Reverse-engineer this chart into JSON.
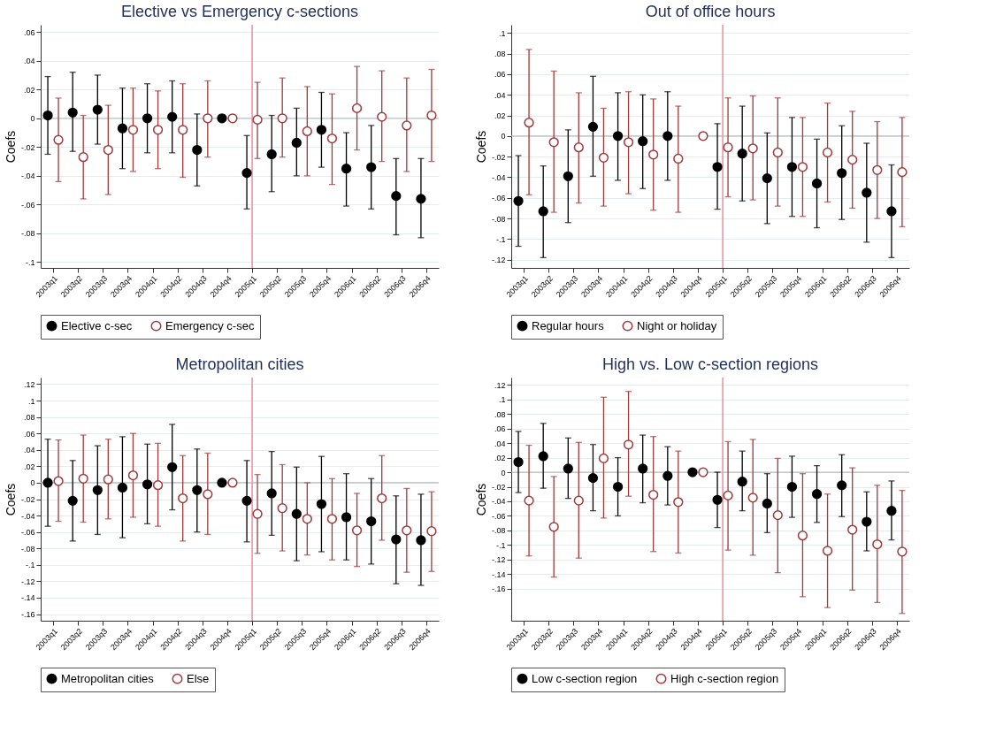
{
  "chart_data": [
    {
      "type": "scatter",
      "title": "Elective vs Emergency c-sections",
      "ylabel": "Coefs",
      "categories": [
        "2003q1",
        "2003q2",
        "2003q3",
        "2003q4",
        "2004q1",
        "2004q2",
        "2004q3",
        "2004q4",
        "2005q1",
        "2005q2",
        "2005q3",
        "2005q4",
        "2006q1",
        "2006q2",
        "2006q3",
        "2006q4"
      ],
      "ylim": [
        -0.104,
        0.065
      ],
      "yticks": [
        {
          "value": -0.1,
          "label": "-.1"
        },
        {
          "value": -0.08,
          "label": "-.08"
        },
        {
          "value": -0.06,
          "label": "-.06"
        },
        {
          "value": -0.04,
          "label": "-.04"
        },
        {
          "value": -0.02,
          "label": "-.02"
        },
        0,
        {
          "value": 0.02,
          "label": ".02"
        },
        {
          "value": 0.04,
          "label": ".04"
        },
        {
          "value": 0.06,
          "label": ".06"
        }
      ],
      "grid": "y",
      "legend": "bottom",
      "marker": "circle",
      "ref_lines": [
        {
          "axis": "x",
          "value": "2005q1",
          "color": "#e8708a"
        },
        {
          "axis": "y",
          "value": 0,
          "color": "#bbbbbb"
        }
      ],
      "series": [
        {
          "name": "Elective c-sec",
          "color": "#000000",
          "values": [
            0.002,
            0.004,
            0.006,
            -0.007,
            0,
            0.001,
            -0.022,
            0,
            -0.038,
            -0.025,
            -0.017,
            -0.008,
            -0.035,
            -0.034,
            -0.054,
            -0.056
          ],
          "errors": [
            [
              -0.025,
              0.029
            ],
            [
              -0.023,
              0.032
            ],
            [
              -0.018,
              0.03
            ],
            [
              -0.035,
              0.021
            ],
            [
              -0.024,
              0.024
            ],
            [
              -0.024,
              0.026
            ],
            [
              -0.047,
              0.003
            ],
            null,
            [
              -0.063,
              -0.012
            ],
            [
              -0.051,
              0.002
            ],
            [
              -0.04,
              0.007
            ],
            [
              -0.034,
              0.018
            ],
            [
              -0.061,
              -0.01
            ],
            [
              -0.063,
              -0.005
            ],
            [
              -0.081,
              -0.028
            ],
            [
              -0.083,
              -0.028
            ]
          ]
        },
        {
          "name": "Emergency c-sec",
          "color": "#9e3a3a",
          "values": [
            -0.015,
            -0.027,
            -0.022,
            -0.008,
            -0.008,
            -0.008,
            0,
            0,
            -0.001,
            0,
            -0.009,
            -0.014,
            0.007,
            0.001,
            -0.005,
            0.002
          ],
          "errors": [
            [
              -0.044,
              0.014
            ],
            [
              -0.056,
              0.002
            ],
            [
              -0.053,
              0.009
            ],
            [
              -0.037,
              0.021
            ],
            [
              -0.035,
              0.019
            ],
            [
              -0.041,
              0.024
            ],
            [
              -0.027,
              0.026
            ],
            null,
            [
              -0.028,
              0.025
            ],
            [
              -0.027,
              0.028
            ],
            [
              -0.04,
              0.022
            ],
            [
              -0.046,
              0.017
            ],
            [
              -0.022,
              0.036
            ],
            [
              -0.03,
              0.033
            ],
            [
              -0.037,
              0.028
            ],
            [
              -0.03,
              0.034
            ]
          ]
        }
      ]
    },
    {
      "type": "scatter",
      "title": "Out of office hours",
      "ylabel": "Coefs",
      "categories": [
        "2003q1",
        "2003q2",
        "2003q3",
        "2003q4",
        "2004q1",
        "2004q2",
        "2004q3",
        "2004q4",
        "2005q1",
        "2005q2",
        "2005q3",
        "2005q4",
        "2006q1",
        "2006q2",
        "2006q3",
        "2006q4"
      ],
      "ylim": [
        -0.128,
        0.108
      ],
      "yticks": [
        {
          "value": -0.12,
          "label": "-.12"
        },
        {
          "value": -0.1,
          "label": "-.1"
        },
        {
          "value": -0.08,
          "label": "-.08"
        },
        {
          "value": -0.06,
          "label": "-.06"
        },
        {
          "value": -0.04,
          "label": "-.04"
        },
        {
          "value": -0.02,
          "label": "-.02"
        },
        0,
        {
          "value": 0.02,
          "label": ".02"
        },
        {
          "value": 0.04,
          "label": ".04"
        },
        {
          "value": 0.06,
          "label": ".06"
        },
        {
          "value": 0.08,
          "label": ".08"
        },
        {
          "value": 0.1,
          "label": ".1"
        }
      ],
      "grid": "y",
      "legend": "bottom",
      "marker": "circle",
      "ref_lines": [
        {
          "axis": "x",
          "value": "2005q1",
          "color": "#e8708a"
        },
        {
          "axis": "y",
          "value": 0,
          "color": "#bbbbbb"
        }
      ],
      "series": [
        {
          "name": "Regular hours",
          "color": "#000000",
          "values": [
            -0.063,
            -0.073,
            -0.039,
            0.009,
            0,
            -0.005,
            0,
            null,
            -0.03,
            -0.017,
            -0.041,
            -0.03,
            -0.046,
            -0.036,
            -0.055,
            -0.073
          ],
          "errors": [
            [
              -0.107,
              -0.019
            ],
            [
              -0.118,
              -0.029
            ],
            [
              -0.084,
              0.006
            ],
            [
              -0.039,
              0.058
            ],
            [
              -0.043,
              0.042
            ],
            [
              -0.051,
              0.04
            ],
            [
              -0.043,
              0.043
            ],
            null,
            [
              -0.071,
              0.012
            ],
            [
              -0.063,
              0.029
            ],
            [
              -0.085,
              0.003
            ],
            [
              -0.078,
              0.018
            ],
            [
              -0.089,
              -0.003
            ],
            [
              -0.081,
              0.01
            ],
            [
              -0.103,
              -0.007
            ],
            [
              -0.118,
              -0.028
            ]
          ]
        },
        {
          "name": "Night or holiday",
          "color": "#9e3a3a",
          "values": [
            0.013,
            -0.006,
            -0.011,
            -0.021,
            -0.006,
            -0.018,
            -0.022,
            0,
            -0.011,
            -0.012,
            -0.016,
            -0.03,
            -0.016,
            -0.023,
            -0.033,
            -0.035
          ],
          "errors": [
            [
              -0.057,
              0.084
            ],
            [
              -0.074,
              0.063
            ],
            [
              -0.065,
              0.042
            ],
            [
              -0.068,
              0.027
            ],
            [
              -0.056,
              0.043
            ],
            [
              -0.072,
              0.036
            ],
            [
              -0.074,
              0.029
            ],
            null,
            [
              -0.059,
              0.037
            ],
            [
              -0.062,
              0.039
            ],
            [
              -0.068,
              0.037
            ],
            [
              -0.078,
              0.018
            ],
            [
              -0.064,
              0.032
            ],
            [
              -0.07,
              0.024
            ],
            [
              -0.08,
              0.014
            ],
            [
              -0.088,
              0.018
            ]
          ]
        }
      ]
    },
    {
      "type": "scatter",
      "title": "Metropolitan cities",
      "ylabel": "Coefs",
      "categories": [
        "2003q1",
        "2003q2",
        "2003q3",
        "2003q4",
        "2004q1",
        "2004q2",
        "2004q3",
        "2004q4",
        "2005q1",
        "2005q2",
        "2005q3",
        "2005q4",
        "2006q1",
        "2006q2",
        "2006q3",
        "2006q4"
      ],
      "ylim": [
        -0.168,
        0.128
      ],
      "yticks": [
        {
          "value": -0.16,
          "label": "-.16"
        },
        {
          "value": -0.14,
          "label": "-.14"
        },
        {
          "value": -0.12,
          "label": "-.12"
        },
        {
          "value": -0.1,
          "label": "-.1"
        },
        {
          "value": -0.08,
          "label": "-.08"
        },
        {
          "value": -0.06,
          "label": "-.06"
        },
        {
          "value": -0.04,
          "label": "-.04"
        },
        {
          "value": -0.02,
          "label": "-.02"
        },
        0,
        {
          "value": 0.02,
          "label": ".02"
        },
        {
          "value": 0.04,
          "label": ".04"
        },
        {
          "value": 0.06,
          "label": ".06"
        },
        {
          "value": 0.08,
          "label": ".08"
        },
        {
          "value": 0.1,
          "label": ".1"
        },
        {
          "value": 0.12,
          "label": ".12"
        }
      ],
      "grid": "y",
      "legend": "bottom",
      "marker": "circle",
      "ref_lines": [
        {
          "axis": "x",
          "value": "2005q1",
          "color": "#e8708a"
        },
        {
          "axis": "y",
          "value": 0,
          "color": "#bbbbbb"
        }
      ],
      "series": [
        {
          "name": "Metropolitan cities",
          "color": "#000000",
          "values": [
            0,
            -0.022,
            -0.009,
            -0.006,
            -0.002,
            0.019,
            -0.009,
            0,
            -0.022,
            -0.013,
            -0.038,
            -0.026,
            -0.042,
            -0.047,
            -0.069,
            -0.07
          ],
          "errors": [
            [
              -0.053,
              0.053
            ],
            [
              -0.071,
              0.027
            ],
            [
              -0.063,
              0.045
            ],
            [
              -0.067,
              0.056
            ],
            [
              -0.05,
              0.047
            ],
            [
              -0.033,
              0.071
            ],
            [
              -0.06,
              0.041
            ],
            null,
            [
              -0.072,
              0.027
            ],
            [
              -0.064,
              0.038
            ],
            [
              -0.095,
              0.019
            ],
            [
              -0.084,
              0.032
            ],
            [
              -0.094,
              0.011
            ],
            [
              -0.099,
              0.005
            ],
            [
              -0.123,
              -0.016
            ],
            [
              -0.125,
              -0.014
            ]
          ]
        },
        {
          "name": "Else",
          "color": "#9e3a3a",
          "values": [
            0.002,
            0.005,
            0.004,
            0.009,
            -0.003,
            -0.019,
            -0.014,
            0,
            -0.038,
            -0.031,
            -0.044,
            -0.044,
            -0.058,
            -0.019,
            -0.058,
            -0.059
          ],
          "errors": [
            [
              -0.047,
              0.052
            ],
            [
              -0.048,
              0.058
            ],
            [
              -0.044,
              0.053
            ],
            [
              -0.042,
              0.06
            ],
            [
              -0.053,
              0.048
            ],
            [
              -0.071,
              0.033
            ],
            [
              -0.063,
              0.036
            ],
            null,
            [
              -0.086,
              0.01
            ],
            [
              -0.083,
              0.022
            ],
            [
              -0.088,
              0
            ],
            [
              -0.094,
              0.005
            ],
            [
              -0.102,
              -0.013
            ],
            [
              -0.07,
              0.033
            ],
            [
              -0.109,
              -0.007
            ],
            [
              -0.108,
              -0.011
            ]
          ]
        }
      ]
    },
    {
      "type": "scatter",
      "title": "High vs. Low c-section regions",
      "ylabel": "Coefs",
      "categories": [
        "2003q1",
        "2003q2",
        "2003q3",
        "2003q4",
        "2004q1",
        "2004q2",
        "2004q3",
        "2004q4",
        "2005q1",
        "2005q2",
        "2005q3",
        "2005q4",
        "2006q1",
        "2006q2",
        "2006q3",
        "2006q4"
      ],
      "ylim": [
        -0.204,
        0.13
      ],
      "yticks": [
        {
          "value": -0.16,
          "label": "-.16"
        },
        {
          "value": -0.14,
          "label": "-.14"
        },
        {
          "value": -0.12,
          "label": "-.12"
        },
        {
          "value": -0.1,
          "label": "-.1"
        },
        {
          "value": -0.08,
          "label": "-.08"
        },
        {
          "value": -0.06,
          "label": "-.06"
        },
        {
          "value": -0.04,
          "label": "-.04"
        },
        {
          "value": -0.02,
          "label": "-.02"
        },
        0,
        {
          "value": 0.02,
          "label": ".02"
        },
        {
          "value": 0.04,
          "label": ".04"
        },
        {
          "value": 0.06,
          "label": ".06"
        },
        {
          "value": 0.08,
          "label": ".08"
        },
        {
          "value": 0.1,
          "label": ".1"
        },
        {
          "value": 0.12,
          "label": ".12"
        }
      ],
      "grid": "y",
      "legend": "bottom",
      "marker": "circle",
      "ref_lines": [
        {
          "axis": "x",
          "value": "2005q1",
          "color": "#e8708a"
        },
        {
          "axis": "y",
          "value": 0,
          "color": "#bbbbbb"
        }
      ],
      "series": [
        {
          "name": "Low c-section region",
          "color": "#000000",
          "values": [
            0.014,
            0.022,
            0.005,
            -0.008,
            -0.02,
            0.005,
            -0.005,
            0,
            -0.038,
            -0.013,
            -0.043,
            -0.02,
            -0.03,
            -0.018,
            -0.068,
            -0.053
          ],
          "errors": [
            [
              -0.028,
              0.056
            ],
            [
              -0.022,
              0.067
            ],
            [
              -0.036,
              0.047
            ],
            [
              -0.053,
              0.038
            ],
            [
              -0.06,
              0.02
            ],
            [
              -0.042,
              0.051
            ],
            [
              -0.045,
              0.035
            ],
            null,
            [
              -0.076,
              0
            ],
            [
              -0.053,
              0.029
            ],
            [
              -0.083,
              -0.002
            ],
            [
              -0.062,
              0.022
            ],
            [
              -0.069,
              0.009
            ],
            [
              -0.061,
              0.024
            ],
            [
              -0.108,
              -0.027
            ],
            [
              -0.093,
              -0.012
            ]
          ]
        },
        {
          "name": "High c-section region",
          "color": "#9e3a3a",
          "values": [
            -0.039,
            -0.075,
            -0.039,
            0.019,
            0.038,
            -0.031,
            -0.041,
            0,
            -0.032,
            -0.035,
            -0.059,
            -0.087,
            -0.108,
            -0.079,
            -0.099,
            -0.109
          ],
          "errors": [
            [
              -0.115,
              0.037
            ],
            [
              -0.144,
              -0.006
            ],
            [
              -0.118,
              0.041
            ],
            [
              -0.063,
              0.103
            ],
            [
              -0.033,
              0.111
            ],
            [
              -0.109,
              0.049
            ],
            [
              -0.111,
              0.029
            ],
            null,
            [
              -0.107,
              0.042
            ],
            [
              -0.114,
              0.045
            ],
            [
              -0.138,
              0.019
            ],
            [
              -0.171,
              -0.002
            ],
            [
              -0.186,
              -0.03
            ],
            [
              -0.162,
              0.006
            ],
            [
              -0.179,
              -0.018
            ],
            [
              -0.194,
              -0.025
            ]
          ]
        }
      ]
    }
  ]
}
